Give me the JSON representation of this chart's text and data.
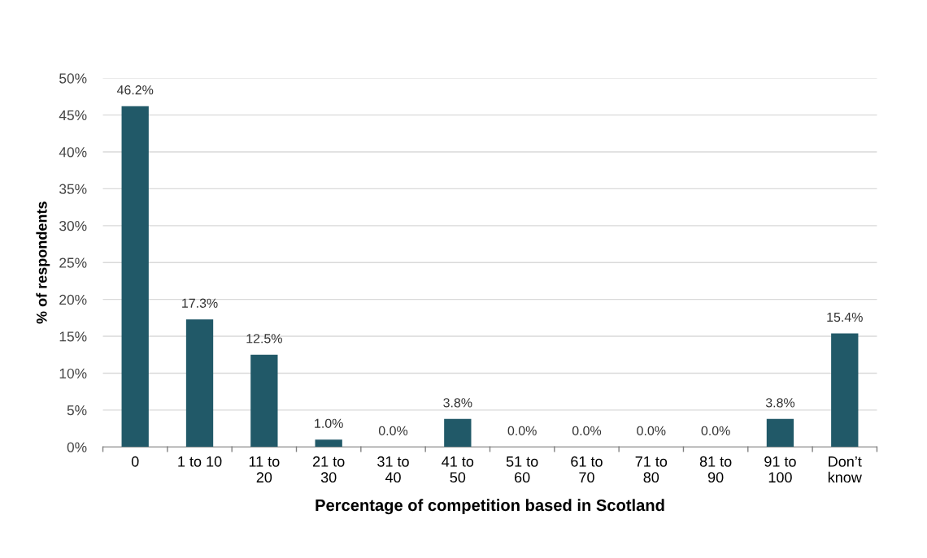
{
  "chart_data": {
    "type": "bar",
    "xlabel": "Percentage of competition based in Scotland",
    "ylabel": "% of respondents",
    "categories": [
      "0",
      "1 to 10",
      "11 to\n20",
      "21 to\n30",
      "31 to\n40",
      "41 to\n50",
      "51 to\n60",
      "61 to\n70",
      "71 to\n80",
      "81 to\n90",
      "91 to\n100",
      "Don’t\nknow"
    ],
    "values": [
      46.2,
      17.3,
      12.5,
      1.0,
      0.0,
      3.8,
      0.0,
      0.0,
      0.0,
      0.0,
      3.8,
      15.4
    ],
    "value_labels": [
      "46.2%",
      "17.3%",
      "12.5%",
      "1.0%",
      "0.0%",
      "3.8%",
      "0.0%",
      "0.0%",
      "0.0%",
      "0.0%",
      "3.8%",
      "15.4%"
    ],
    "color": "#215968",
    "ylim": [
      0,
      50
    ],
    "yticks": [
      {
        "value": 0,
        "label": "0%"
      },
      {
        "value": 5,
        "label": "5%"
      },
      {
        "value": 10,
        "label": "10%"
      },
      {
        "value": 15,
        "label": "15%"
      },
      {
        "value": 20,
        "label": "20%"
      },
      {
        "value": 25,
        "label": "25%"
      },
      {
        "value": 30,
        "label": "30%"
      },
      {
        "value": 35,
        "label": "35%"
      },
      {
        "value": 40,
        "label": "40%"
      },
      {
        "value": 45,
        "label": "45%"
      },
      {
        "value": 50,
        "label": "50%"
      }
    ],
    "grid": "y",
    "legend": false
  }
}
